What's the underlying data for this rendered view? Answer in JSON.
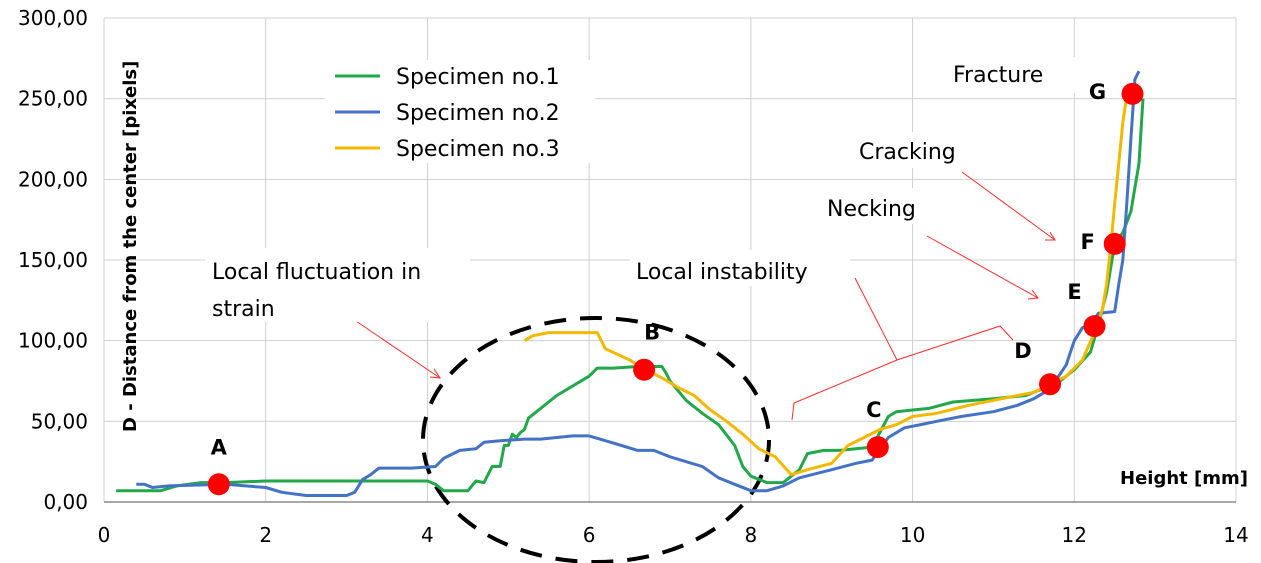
{
  "chart_data": {
    "type": "line",
    "xlabel": "Height [mm]",
    "ylabel": "D - Distance from the center [pixels]",
    "xlim": [
      0,
      14
    ],
    "ylim": [
      0,
      300
    ],
    "x_ticks": [
      "0",
      "2",
      "4",
      "6",
      "8",
      "10",
      "12",
      "14"
    ],
    "y_ticks": [
      "0,00",
      "50,00",
      "100,00",
      "150,00",
      "200,00",
      "250,00",
      "300,00"
    ],
    "grid": true,
    "legend_position": "top-left",
    "colors": {
      "green": "#22a84a",
      "blue": "#4472c4",
      "yellow": "#f5b800",
      "marker": "#ff0000"
    },
    "series": [
      {
        "name": "Specimen no.1",
        "color": "#22a84a",
        "points": [
          [
            0.15,
            7
          ],
          [
            0.7,
            7
          ],
          [
            0.9,
            10
          ],
          [
            1.2,
            12
          ],
          [
            1.5,
            12
          ],
          [
            2.0,
            13
          ],
          [
            3.0,
            13
          ],
          [
            4.0,
            13
          ],
          [
            4.1,
            11
          ],
          [
            4.2,
            7
          ],
          [
            4.5,
            7
          ],
          [
            4.6,
            13
          ],
          [
            4.7,
            12
          ],
          [
            4.8,
            22
          ],
          [
            4.9,
            22
          ],
          [
            4.95,
            35
          ],
          [
            5.0,
            35
          ],
          [
            5.05,
            42
          ],
          [
            5.1,
            40
          ],
          [
            5.15,
            43
          ],
          [
            5.2,
            45
          ],
          [
            5.25,
            52
          ],
          [
            5.4,
            58
          ],
          [
            5.6,
            66
          ],
          [
            5.8,
            72
          ],
          [
            6.0,
            78
          ],
          [
            6.1,
            83
          ],
          [
            6.3,
            83
          ],
          [
            6.6,
            84
          ],
          [
            6.9,
            84
          ],
          [
            6.95,
            80
          ],
          [
            7.0,
            75
          ],
          [
            7.2,
            63
          ],
          [
            7.4,
            55
          ],
          [
            7.6,
            48
          ],
          [
            7.8,
            35
          ],
          [
            7.9,
            22
          ],
          [
            8.0,
            16
          ],
          [
            8.2,
            12
          ],
          [
            8.4,
            12
          ],
          [
            8.6,
            20
          ],
          [
            8.7,
            30
          ],
          [
            8.9,
            32
          ],
          [
            9.1,
            32
          ],
          [
            9.3,
            33
          ],
          [
            9.5,
            34
          ],
          [
            9.7,
            53
          ],
          [
            9.8,
            56
          ],
          [
            10.0,
            57
          ],
          [
            10.2,
            58
          ],
          [
            10.5,
            62
          ],
          [
            11.0,
            64
          ],
          [
            11.4,
            66
          ],
          [
            11.6,
            70
          ],
          [
            11.8,
            74
          ],
          [
            12.0,
            82
          ],
          [
            12.2,
            93
          ],
          [
            12.3,
            110
          ],
          [
            12.4,
            130
          ],
          [
            12.5,
            160
          ],
          [
            12.6,
            167
          ],
          [
            12.7,
            180
          ],
          [
            12.8,
            210
          ],
          [
            12.85,
            250
          ]
        ]
      },
      {
        "name": "Specimen no.2",
        "color": "#4472c4",
        "points": [
          [
            0.4,
            11
          ],
          [
            0.5,
            11
          ],
          [
            0.6,
            9
          ],
          [
            0.8,
            10
          ],
          [
            1.5,
            11
          ],
          [
            2.0,
            9
          ],
          [
            2.2,
            6
          ],
          [
            2.5,
            4
          ],
          [
            3.0,
            4
          ],
          [
            3.1,
            6
          ],
          [
            3.2,
            14
          ],
          [
            3.3,
            17
          ],
          [
            3.4,
            21
          ],
          [
            3.8,
            21
          ],
          [
            4.1,
            22
          ],
          [
            4.2,
            27
          ],
          [
            4.4,
            32
          ],
          [
            4.6,
            33
          ],
          [
            4.7,
            37
          ],
          [
            4.9,
            38
          ],
          [
            5.2,
            39
          ],
          [
            5.4,
            39
          ],
          [
            5.6,
            40
          ],
          [
            5.8,
            41
          ],
          [
            6.0,
            41
          ],
          [
            6.2,
            38
          ],
          [
            6.4,
            35
          ],
          [
            6.6,
            32
          ],
          [
            6.8,
            32
          ],
          [
            7.0,
            28
          ],
          [
            7.2,
            25
          ],
          [
            7.4,
            22
          ],
          [
            7.6,
            15
          ],
          [
            7.8,
            11
          ],
          [
            8.0,
            7
          ],
          [
            8.2,
            7
          ],
          [
            8.4,
            10
          ],
          [
            8.6,
            15
          ],
          [
            9.0,
            20
          ],
          [
            9.3,
            24
          ],
          [
            9.5,
            26
          ],
          [
            9.7,
            40
          ],
          [
            9.9,
            46
          ],
          [
            10.1,
            48
          ],
          [
            10.3,
            50
          ],
          [
            10.6,
            53
          ],
          [
            11.0,
            56
          ],
          [
            11.3,
            60
          ],
          [
            11.5,
            64
          ],
          [
            11.7,
            70
          ],
          [
            11.9,
            85
          ],
          [
            12.0,
            100
          ],
          [
            12.1,
            108
          ],
          [
            12.2,
            110
          ],
          [
            12.3,
            117
          ],
          [
            12.5,
            118
          ],
          [
            12.55,
            135
          ],
          [
            12.6,
            150
          ],
          [
            12.65,
            185
          ],
          [
            12.7,
            225
          ],
          [
            12.75,
            262
          ],
          [
            12.8,
            267
          ]
        ]
      },
      {
        "name": "Specimen no.3",
        "color": "#f5b800",
        "points": [
          [
            5.2,
            100
          ],
          [
            5.3,
            103
          ],
          [
            5.5,
            105
          ],
          [
            5.8,
            105
          ],
          [
            6.1,
            105
          ],
          [
            6.15,
            100
          ],
          [
            6.2,
            95
          ],
          [
            6.5,
            88
          ],
          [
            6.7,
            82
          ],
          [
            6.9,
            77
          ],
          [
            7.1,
            71
          ],
          [
            7.3,
            66
          ],
          [
            7.5,
            57
          ],
          [
            7.7,
            50
          ],
          [
            7.9,
            42
          ],
          [
            8.1,
            33
          ],
          [
            8.3,
            28
          ],
          [
            8.5,
            17
          ],
          [
            8.7,
            20
          ],
          [
            9.0,
            24
          ],
          [
            9.2,
            35
          ],
          [
            9.4,
            40
          ],
          [
            9.6,
            45
          ],
          [
            9.8,
            48
          ],
          [
            10.0,
            53
          ],
          [
            10.3,
            55
          ],
          [
            10.7,
            60
          ],
          [
            11.0,
            63
          ],
          [
            11.3,
            66
          ],
          [
            11.5,
            68
          ],
          [
            11.7,
            73
          ],
          [
            11.9,
            78
          ],
          [
            12.1,
            88
          ],
          [
            12.25,
            105
          ],
          [
            12.35,
            120
          ],
          [
            12.4,
            135
          ],
          [
            12.45,
            158
          ],
          [
            12.5,
            185
          ],
          [
            12.55,
            210
          ],
          [
            12.6,
            235
          ],
          [
            12.65,
            252
          ],
          [
            12.7,
            258
          ]
        ]
      }
    ],
    "markers": [
      {
        "label": "A",
        "x": 1.42,
        "y": 11
      },
      {
        "label": "B",
        "x": 6.68,
        "y": 82
      },
      {
        "label": "C",
        "x": 9.57,
        "y": 34
      },
      {
        "label": "D",
        "x": 11.7,
        "y": 73
      },
      {
        "label": "E",
        "x": 12.25,
        "y": 109
      },
      {
        "label": "F",
        "x": 12.5,
        "y": 160
      },
      {
        "label": "G",
        "x": 12.72,
        "y": 253
      }
    ],
    "annotations": {
      "fluctuation_line1": "Local fluctuation in",
      "fluctuation_line2": "strain",
      "instability": "Local instability",
      "necking": "Necking",
      "cracking": "Cracking",
      "fracture": "Fracture"
    }
  }
}
